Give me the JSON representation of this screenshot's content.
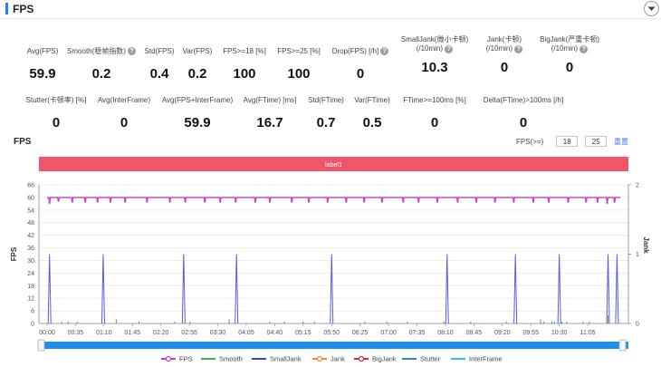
{
  "panel": {
    "title": "FPS"
  },
  "metrics_row1": [
    {
      "label": "Avg(FPS)",
      "help": false,
      "value": "59.9"
    },
    {
      "label": "Smooth(稳帧指数)",
      "help": true,
      "value": "0.2"
    },
    {
      "label": "Std(FPS)",
      "help": false,
      "value": "0.4"
    },
    {
      "label": "Var(FPS)",
      "help": false,
      "value": "0.2"
    },
    {
      "label": "FPS>=18 [%]",
      "help": false,
      "value": "100"
    },
    {
      "label": "FPS>=25 [%]",
      "help": false,
      "value": "100"
    },
    {
      "label": "Drop(FPS) [/h]",
      "help": true,
      "value": "0"
    },
    {
      "label": "SmallJank(微小卡顿)",
      "label2": "(/10min)",
      "help": true,
      "value": "10.3"
    },
    {
      "label": "Jank(卡顿)",
      "label2": "(/10min)",
      "help": true,
      "value": "0"
    },
    {
      "label": "BigJank(严重卡顿)",
      "label2": "(/10min)",
      "help": true,
      "value": "0"
    }
  ],
  "metrics_row2": [
    {
      "label": "Stutter(卡顿率) [%]",
      "help": false,
      "value": "0"
    },
    {
      "label": "Avg(InterFrame)",
      "help": false,
      "value": "0"
    },
    {
      "label": "Avg(FPS+InterFrame)",
      "help": false,
      "value": "59.9"
    },
    {
      "label": "Avg(FTime) [ms]",
      "help": false,
      "value": "16.7"
    },
    {
      "label": "Std(FTime)",
      "help": false,
      "value": "0.7"
    },
    {
      "label": "Var(FTime)",
      "help": false,
      "value": "0.5"
    },
    {
      "label": "FTime>=100ms [%]",
      "help": false,
      "value": "0"
    },
    {
      "label": "Delta(FTime)>100ms [/h]",
      "help": false,
      "value": "0"
    }
  ],
  "chart_header": {
    "title": "FPS",
    "filter_label": "FPS(>=)",
    "filter_value_1": "18",
    "filter_value_2": "25",
    "reset_label": "重置"
  },
  "chart_data": {
    "type": "line",
    "band_label": "label1",
    "y_left": {
      "label": "FPS",
      "ticks": [
        "0",
        "6",
        "12",
        "18",
        "24",
        "30",
        "36",
        "42",
        "48",
        "54",
        "60",
        "66"
      ],
      "range": [
        0,
        66
      ]
    },
    "y_right": {
      "label": "Jank",
      "ticks": [
        "0",
        "1",
        "2"
      ],
      "range": [
        0,
        2
      ]
    },
    "x_labels": [
      "00:00",
      "00:35",
      "01:10",
      "01:45",
      "02:20",
      "02:55",
      "03:30",
      "04:05",
      "04:40",
      "05:15",
      "05:50",
      "06:25",
      "07:00",
      "07:35",
      "08:10",
      "08:45",
      "09:20",
      "09:55",
      "10:30",
      "11:05"
    ],
    "x_range_seconds": [
      0,
      705
    ],
    "fps_base": 60,
    "fps_dips": [
      {
        "t": 3,
        "v": 57.5
      },
      {
        "t": 14,
        "v": 58.5
      },
      {
        "t": 31,
        "v": 58
      },
      {
        "t": 47,
        "v": 58
      },
      {
        "t": 62,
        "v": 58
      },
      {
        "t": 78,
        "v": 58
      },
      {
        "t": 96,
        "v": 58
      },
      {
        "t": 123,
        "v": 58
      },
      {
        "t": 151,
        "v": 58
      },
      {
        "t": 170,
        "v": 58
      },
      {
        "t": 194,
        "v": 58
      },
      {
        "t": 213,
        "v": 58
      },
      {
        "t": 232,
        "v": 58
      },
      {
        "t": 256,
        "v": 58
      },
      {
        "t": 274,
        "v": 58
      },
      {
        "t": 301,
        "v": 58
      },
      {
        "t": 322,
        "v": 58
      },
      {
        "t": 345,
        "v": 58
      },
      {
        "t": 368,
        "v": 58
      },
      {
        "t": 390,
        "v": 58
      },
      {
        "t": 412,
        "v": 58
      },
      {
        "t": 438,
        "v": 58
      },
      {
        "t": 457,
        "v": 58
      },
      {
        "t": 480,
        "v": 58
      },
      {
        "t": 505,
        "v": 58
      },
      {
        "t": 528,
        "v": 58
      },
      {
        "t": 551,
        "v": 58
      },
      {
        "t": 574,
        "v": 58
      },
      {
        "t": 598,
        "v": 58
      },
      {
        "t": 617,
        "v": 58
      },
      {
        "t": 641,
        "v": 58
      },
      {
        "t": 663,
        "v": 58
      },
      {
        "t": 677,
        "v": 58
      },
      {
        "t": 689,
        "v": 57.5
      },
      {
        "t": 698,
        "v": 58
      }
    ],
    "smalljank_times": [
      3,
      69,
      168,
      233,
      350,
      492,
      576,
      630,
      690,
      701
    ],
    "smooth_spikes": [
      {
        "t": 18,
        "v": 1
      },
      {
        "t": 26,
        "v": 1
      },
      {
        "t": 37,
        "v": 1
      },
      {
        "t": 85,
        "v": 2
      },
      {
        "t": 113,
        "v": 1
      },
      {
        "t": 157,
        "v": 1
      },
      {
        "t": 176,
        "v": 1
      },
      {
        "t": 224,
        "v": 2
      },
      {
        "t": 274,
        "v": 1
      },
      {
        "t": 292,
        "v": 1
      },
      {
        "t": 315,
        "v": 1
      },
      {
        "t": 329,
        "v": 1
      },
      {
        "t": 391,
        "v": 1
      },
      {
        "t": 418,
        "v": 1
      },
      {
        "t": 443,
        "v": 1
      },
      {
        "t": 488,
        "v": 1
      },
      {
        "t": 521,
        "v": 1
      },
      {
        "t": 565,
        "v": 1
      },
      {
        "t": 607,
        "v": 2
      },
      {
        "t": 611,
        "v": 1
      },
      {
        "t": 621,
        "v": 1
      },
      {
        "t": 624,
        "v": 1
      },
      {
        "t": 633,
        "v": 1
      },
      {
        "t": 639,
        "v": 1
      },
      {
        "t": 659,
        "v": 1
      },
      {
        "t": 667,
        "v": 1
      },
      {
        "t": 690,
        "v": 4
      }
    ],
    "legend": [
      {
        "name": "FPS",
        "color": "#cc3dc5",
        "marker": "circle"
      },
      {
        "name": "Smooth",
        "color": "#3ab54a",
        "marker": "none"
      },
      {
        "name": "SmallJank",
        "color": "#3f3fd2",
        "marker": "none"
      },
      {
        "name": "Jank",
        "color": "#f28c28",
        "marker": "circle"
      },
      {
        "name": "BigJank",
        "color": "#e0262f",
        "marker": "circle"
      },
      {
        "name": "Stutter",
        "color": "#2f7fe6",
        "marker": "none"
      },
      {
        "name": "InterFrame",
        "color": "#29c8d8",
        "marker": "none"
      }
    ],
    "colors": {
      "band": "#f0566a",
      "slider": "#1f8ef1",
      "fps": "#cc3dc5",
      "smooth": "#3ab54a",
      "smalljank": "#5a5ae6"
    }
  }
}
